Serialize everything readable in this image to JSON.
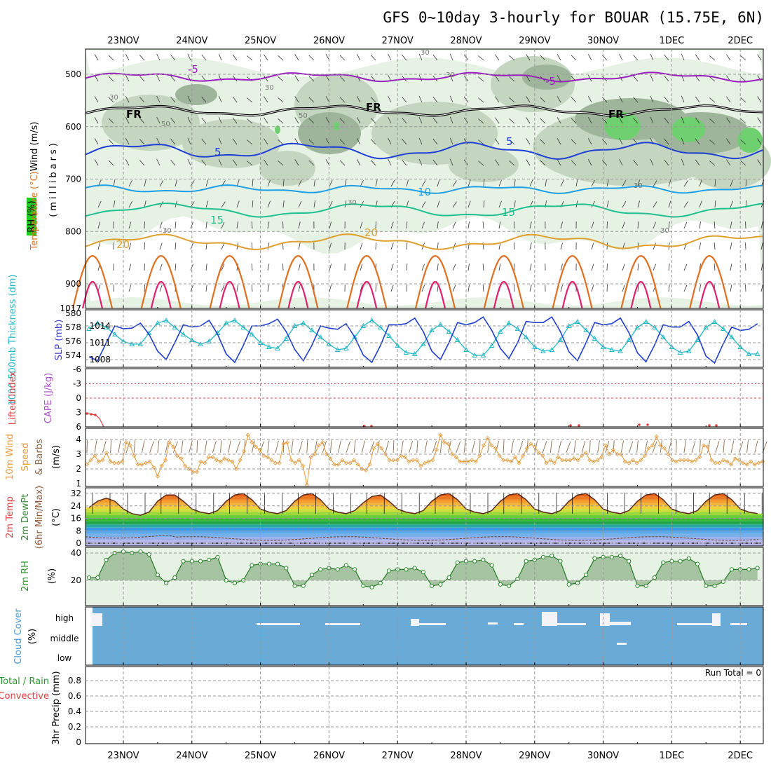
{
  "title": "GFS 0~10day 3-hourly for BOUAR (15.75E, 6N)",
  "dates": [
    "23NOV",
    "24NOV",
    "25NOV",
    "26NOV",
    "27NOV",
    "28NOV",
    "29NOV",
    "30NOV",
    "1DEC",
    "2DEC"
  ],
  "panels": {
    "upper": {
      "ylabel_wind": "Wind (m/s)",
      "ylabel_temp": "Temperature (°C)",
      "ylabel_rh": "RH (%)",
      "ylabel_units": "(millibars)",
      "pressure_ticks": [
        "500",
        "600",
        "700",
        "800",
        "900",
        "1017"
      ],
      "contour_labels": [
        "-5",
        "FR",
        "5",
        "10",
        "15",
        "20"
      ],
      "rh_labels": [
        "30",
        "50"
      ]
    },
    "thickness": {
      "ylabel_left": "1000-500mb Thickness (dm)",
      "ylabel_right": "SLP (mb)",
      "left_ticks": [
        "580",
        "578",
        "576",
        "574"
      ],
      "right_ticks": [
        "1014",
        "1011",
        "1008"
      ]
    },
    "stability": {
      "ylabel_li": "Lifted Index",
      "ylabel_cape": "CAPE (J/kg)",
      "ticks": [
        "-6",
        "-3",
        "0",
        "3",
        "6"
      ]
    },
    "wind10m": {
      "ylabel_a": "10m Wind",
      "ylabel_b": "Speed",
      "ylabel_c": "& Barbs",
      "ylabel_unit": "(m/s)",
      "ticks": [
        "4",
        "3",
        "2",
        "1"
      ]
    },
    "temp2m": {
      "ylabel_a": "2m Temp",
      "ylabel_b": "2m DewPt",
      "ylabel_c": "(6hr Min/Max)",
      "ylabel_unit": "(°C)",
      "ticks": [
        "32",
        "24",
        "16",
        "8",
        "0"
      ]
    },
    "rh2m": {
      "ylabel": "2m RH",
      "ylabel_unit": "(%)",
      "ticks": [
        "40",
        "20"
      ]
    },
    "cloud": {
      "ylabel": "Cloud Cover",
      "ylabel_unit": "(%)",
      "levels": [
        "high",
        "middle",
        "low"
      ]
    },
    "precip": {
      "ylabel_a": "Total / Rain",
      "ylabel_b": "Convective",
      "ylabel_c": "3hr Precip (mm)",
      "ticks": [
        "0.8",
        "0.6",
        "0.4",
        "0.2",
        "0"
      ],
      "run_total": "Run Total = 0"
    }
  },
  "colors": {
    "temp_minus5": "#9b1fbf",
    "temp_fr": "#000000",
    "temp_5": "#1f3fd6",
    "temp_10": "#1f9fe6",
    "temp_15": "#1fbf8f",
    "temp_20": "#e0a030",
    "temp_25": "#e07020",
    "temp_30": "#e0206f",
    "rh_light": "#e6f2e4",
    "rh_mid": "#c4d6c0",
    "rh_dark": "#9fb59b",
    "rh_green": "#6fd06f",
    "thickness": "#1fb8c8",
    "slp": "#1f3fcf",
    "wind": "#e69a3a",
    "cloud_bg": "#6aaad6"
  },
  "chart_data": [
    {
      "type": "line",
      "panel": "1000-500mb thickness / SLP",
      "series": [
        {
          "name": "1000-500mb Thickness (dm)",
          "values": [
            577.8,
            578.6,
            578.0,
            577.0,
            576.0,
            575.6,
            575.6,
            577.2,
            578.6,
            579.0,
            578.0,
            577.0,
            576.2,
            575.6,
            576.0,
            577.2,
            578.6,
            579.0,
            578.0,
            577.0,
            575.8,
            575.2,
            575.0,
            576.4,
            578.2,
            578.6,
            577.6,
            576.6,
            575.6,
            574.8,
            575.0,
            576.6,
            578.2,
            579.0,
            578.0,
            576.8,
            575.4,
            574.4,
            574.2,
            575.6,
            577.6,
            578.4,
            577.4,
            576.2,
            574.8,
            574.0,
            574.0,
            575.4,
            577.4,
            578.6,
            577.8,
            576.6,
            575.2,
            574.6,
            574.8,
            576.2,
            578.2,
            578.8,
            577.6,
            576.4,
            575.2,
            574.8,
            574.6,
            576.2,
            578.0,
            578.8,
            578.0,
            576.6,
            575.2,
            574.4,
            574.6,
            576.2,
            578.0,
            578.8,
            577.8,
            576.6,
            575.2,
            574.2,
            574.2,
            575.4
          ]
        },
        {
          "name": "SLP (mb)",
          "values": [
            1008.5,
            1007.8,
            1011.0,
            1014.0,
            1013.5,
            1013.6,
            1014.5,
            1012.5,
            1009.5,
            1008.0,
            1011.0,
            1014.2,
            1013.8,
            1014.0,
            1015.0,
            1012.5,
            1009.0,
            1007.5,
            1010.5,
            1014.0,
            1014.0,
            1014.4,
            1015.2,
            1013.0,
            1009.8,
            1007.8,
            1010.5,
            1014.0,
            1013.6,
            1013.4,
            1014.4,
            1012.0,
            1008.8,
            1007.5,
            1010.5,
            1014.2,
            1014.2,
            1014.4,
            1015.4,
            1013.0,
            1009.5,
            1008.0,
            1011.0,
            1014.6,
            1014.2,
            1014.6,
            1015.6,
            1013.2,
            1010.0,
            1008.2,
            1011.0,
            1014.8,
            1014.6,
            1014.6,
            1015.6,
            1013.0,
            1009.4,
            1007.8,
            1011.0,
            1014.6,
            1014.2,
            1014.4,
            1015.4,
            1012.8,
            1009.2,
            1007.6,
            1010.6,
            1014.2,
            1013.8,
            1013.8,
            1014.8,
            1012.4,
            1008.6,
            1007.4,
            1010.8,
            1013.8,
            1013.2,
            1013.4,
            1014.4,
            1012.2
          ]
        }
      ]
    },
    {
      "type": "line",
      "panel": "10m wind speed",
      "x_step_hours": 3,
      "series": [
        {
          "name": "Speed",
          "values": [
            2.3,
            2.6,
            2.9,
            2.5,
            2.6,
            3.1,
            2.5,
            2.4,
            2.4,
            2.5,
            3.8,
            3.6,
            2.9,
            2.3,
            2.3,
            2.4,
            2.5,
            2.1,
            1.5,
            2.2,
            2.6,
            3.8,
            3.5,
            2.9,
            2.7,
            2.2,
            2.0,
            1.8,
            1.8,
            2.5,
            2.4,
            2.8,
            2.8,
            2.6,
            2.5,
            2.7,
            2.6,
            2.5,
            2.0,
            2.6,
            3.2,
            4.3,
            3.8,
            3.5,
            3.3,
            2.9,
            2.8,
            2.6,
            2.4,
            2.4,
            3.7,
            3.8,
            2.6,
            2.4,
            2.6,
            2.2,
            0.8,
            2.8,
            3.0,
            3.6,
            3.8,
            3.0,
            2.7,
            2.3,
            2.3,
            2.6,
            2.4,
            2.4,
            2.6,
            2.3,
            2.0,
            1.9,
            2.3,
            3.4,
            3.7,
            3.4,
            3.0,
            2.6,
            2.6,
            2.6,
            2.9,
            2.8,
            2.5,
            2.6,
            2.6,
            2.2,
            2.4,
            2.5,
            2.6,
            3.3,
            4.3,
            3.8,
            3.7,
            3.0,
            2.8,
            2.5,
            2.5,
            2.5,
            2.6,
            2.5,
            2.9,
            3.6,
            4.1,
            3.6,
            3.4,
            2.9,
            2.6,
            2.6,
            2.5,
            2.8,
            2.4,
            2.9,
            3.4,
            3.7,
            3.5,
            3.1,
            2.9,
            2.4,
            2.6,
            2.4,
            2.8,
            2.6,
            2.6,
            2.6,
            2.7,
            2.6,
            2.9,
            3.1,
            2.6,
            2.5,
            2.6,
            2.8,
            3.6,
            3.0,
            3.3,
            3.0,
            3.0,
            2.5,
            2.4,
            2.6,
            2.4,
            2.6,
            2.9,
            3.4,
            3.6,
            4.2,
            3.6,
            3.4,
            3.0,
            2.6,
            2.5,
            2.6,
            2.6,
            2.6,
            2.5,
            2.6,
            2.8,
            3.6,
            3.5,
            2.6,
            2.4,
            2.4,
            2.6,
            2.5,
            2.3,
            2.7,
            2.6,
            2.4,
            2.3,
            2.5,
            2.3,
            2.4,
            2.5
          ]
        }
      ]
    },
    {
      "type": "area",
      "panel": "2m RH",
      "series": [
        {
          "name": "2m RH (%)",
          "values": [
            22,
            22,
            35,
            40,
            41,
            40,
            41,
            39,
            24,
            18,
            22,
            34,
            34,
            34,
            35,
            37,
            20,
            18,
            20,
            31,
            32,
            32,
            32,
            29,
            16,
            16,
            24,
            28,
            29,
            28,
            31,
            28,
            16,
            15,
            18,
            27,
            28,
            28,
            29,
            26,
            16,
            17,
            22,
            33,
            34,
            34,
            35,
            31,
            17,
            16,
            21,
            34,
            35,
            37,
            38,
            34,
            17,
            18,
            24,
            36,
            37,
            37,
            38,
            34,
            16,
            16,
            22,
            33,
            34,
            34,
            36,
            32,
            16,
            16,
            19,
            28,
            28,
            28,
            29,
            28
          ]
        }
      ]
    },
    {
      "type": "line",
      "panel": "2m temperature",
      "series": [
        {
          "name": "2m Temp (°C)",
          "values": [
            23,
            27,
            29,
            27,
            22,
            19,
            18,
            20,
            27,
            31,
            31,
            27,
            22,
            20,
            19,
            21,
            27,
            31,
            32,
            28,
            22,
            20,
            19,
            21,
            27,
            31,
            32,
            28,
            22,
            20,
            19,
            21,
            26,
            30,
            31,
            27,
            22,
            20,
            19,
            21,
            27,
            31,
            32,
            28,
            22,
            20,
            19,
            21,
            27,
            31,
            32,
            28,
            22,
            20,
            19,
            21,
            27,
            31,
            32,
            28,
            22,
            20,
            19,
            21,
            27,
            31,
            32,
            28,
            22,
            20,
            19,
            21,
            27,
            31,
            32,
            28,
            22,
            20,
            19,
            21
          ]
        }
      ]
    },
    {
      "type": "bar",
      "panel": "3hr precip",
      "series": [
        {
          "name": "Total / Rain",
          "values": [
            0
          ]
        }
      ],
      "ylim": [
        0,
        1
      ]
    }
  ]
}
